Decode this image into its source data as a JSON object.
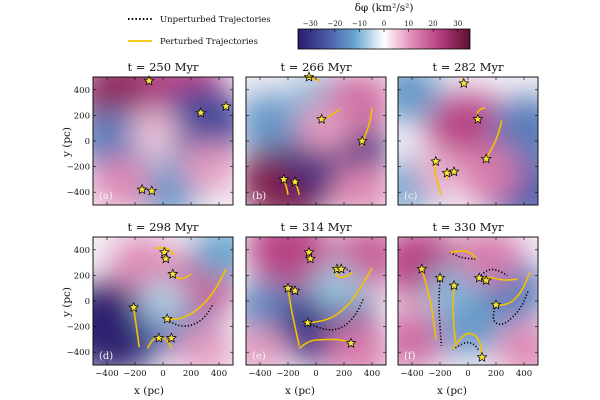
{
  "chart_data": {
    "type": "heatmap",
    "legend": {
      "placement": "top-left",
      "unperturbed": {
        "label": "Unperturbed Trajectories",
        "style": "black dotted line"
      },
      "perturbed": {
        "label": "Perturbed Trajectories",
        "style": "gold solid line"
      }
    },
    "colorbar": {
      "label": "δφ (km²/s²)",
      "range": [
        -35,
        35
      ],
      "ticks": [
        "−30",
        "−20",
        "−10",
        "0",
        "10",
        "20",
        "30"
      ],
      "colormap": [
        "#2a1b6b",
        "#4a58a8",
        "#6aa7cf",
        "#ffffff",
        "#e08ab6",
        "#b23a7d",
        "#5a0f2e"
      ]
    },
    "x_axis": {
      "label": "x (pc)",
      "range": [
        -500,
        500
      ],
      "tick_labels": [
        "−400",
        "−200",
        "0",
        "200",
        "400"
      ]
    },
    "y_axis": {
      "label": "y (pc)",
      "range": [
        -500,
        500
      ],
      "tick_labels": [
        "400",
        "200",
        "0",
        "−200",
        "−400"
      ]
    },
    "colors": {
      "star_fill": "#f5e23a",
      "perturbed_line": "#f2c200",
      "unperturbed_line": "#000000"
    },
    "panels": [
      {
        "title": "t = 250 Myr",
        "label": "(a)",
        "field": [
          {
            "x": -270,
            "y": 350,
            "value": 28
          },
          {
            "x": 150,
            "y": 400,
            "value": 22
          },
          {
            "x": -350,
            "y": 0,
            "value": -18
          },
          {
            "x": 280,
            "y": 120,
            "value": -26
          },
          {
            "x": 20,
            "y": -380,
            "value": -14
          },
          {
            "x": 330,
            "y": -200,
            "value": 10
          },
          {
            "x": -60,
            "y": 80,
            "value": 6
          },
          {
            "x": -300,
            "y": -330,
            "value": 12
          }
        ],
        "stars": [
          [
            -100,
            470
          ],
          [
            450,
            270
          ],
          [
            270,
            220
          ],
          [
            -150,
            -380
          ],
          [
            -80,
            -390
          ]
        ],
        "perturbed": [],
        "unperturbed": []
      },
      {
        "title": "t = 266 Myr",
        "label": "(b)",
        "field": [
          {
            "x": -200,
            "y": -300,
            "value": 30
          },
          {
            "x": 150,
            "y": -120,
            "value": -32
          },
          {
            "x": -330,
            "y": 150,
            "value": -14
          },
          {
            "x": 30,
            "y": 320,
            "value": -10
          },
          {
            "x": 300,
            "y": 300,
            "value": 16
          },
          {
            "x": 320,
            "y": -380,
            "value": 12
          },
          {
            "x": 60,
            "y": 100,
            "value": 10
          }
        ],
        "stars": [
          [
            -50,
            500
          ],
          [
            40,
            170
          ],
          [
            330,
            0
          ],
          [
            -230,
            -300
          ],
          [
            -150,
            -320
          ]
        ],
        "perturbed": [
          [
            [
              -80,
              500
            ],
            [
              -20,
              490
            ],
            [
              30,
              470
            ]
          ],
          [
            [
              320,
              -40
            ],
            [
              360,
              60
            ],
            [
              390,
              170
            ],
            [
              400,
              260
            ]
          ],
          [
            [
              60,
              170
            ],
            [
              120,
              210
            ],
            [
              170,
              250
            ]
          ],
          [
            [
              -230,
              -300
            ],
            [
              -210,
              -360
            ],
            [
              -200,
              -420
            ]
          ],
          [
            [
              -150,
              -320
            ],
            [
              -130,
              -370
            ],
            [
              -120,
              -420
            ]
          ]
        ],
        "unperturbed": []
      },
      {
        "title": "t = 282 Myr",
        "label": "(c)",
        "field": [
          {
            "x": 0,
            "y": 100,
            "value": 22
          },
          {
            "x": -430,
            "y": 380,
            "value": -14
          },
          {
            "x": 430,
            "y": 100,
            "value": -18
          },
          {
            "x": -420,
            "y": -350,
            "value": -12
          },
          {
            "x": 400,
            "y": -380,
            "value": -22
          },
          {
            "x": 150,
            "y": -250,
            "value": 14
          },
          {
            "x": -200,
            "y": -250,
            "value": 8
          }
        ],
        "stars": [
          [
            -30,
            450
          ],
          [
            70,
            170
          ],
          [
            130,
            -140
          ],
          [
            -230,
            -160
          ],
          [
            -150,
            -250
          ],
          [
            -100,
            -240
          ]
        ],
        "perturbed": [
          [
            [
              -30,
              450
            ],
            [
              -40,
              490
            ]
          ],
          [
            [
              70,
              170
            ],
            [
              60,
              220
            ],
            [
              90,
              250
            ],
            [
              120,
              260
            ]
          ],
          [
            [
              130,
              -140
            ],
            [
              180,
              -40
            ],
            [
              220,
              60
            ],
            [
              240,
              160
            ]
          ],
          [
            [
              -230,
              -160
            ],
            [
              -240,
              -240
            ],
            [
              -220,
              -320
            ],
            [
              -190,
              -420
            ]
          ],
          [
            [
              -150,
              -250
            ],
            [
              -150,
              -300
            ]
          ]
        ],
        "unperturbed": []
      },
      {
        "title": "t = 298 Myr",
        "label": "(d)",
        "field": [
          {
            "x": -350,
            "y": -200,
            "value": -34
          },
          {
            "x": 120,
            "y": -150,
            "value": -20
          },
          {
            "x": -150,
            "y": 300,
            "value": 12
          },
          {
            "x": 300,
            "y": 150,
            "value": 18
          },
          {
            "x": 430,
            "y": 380,
            "value": -12
          },
          {
            "x": 0,
            "y": 0,
            "value": -6
          },
          {
            "x": 300,
            "y": -380,
            "value": 10
          }
        ],
        "stars": [
          [
            -210,
            -50
          ],
          [
            10,
            380
          ],
          [
            20,
            330
          ],
          [
            70,
            210
          ],
          [
            30,
            -140
          ],
          [
            60,
            -290
          ],
          [
            -30,
            -290
          ]
        ],
        "perturbed": [
          [
            [
              -60,
              410
            ],
            [
              0,
              420
            ],
            [
              50,
              400
            ],
            [
              80,
              360
            ]
          ],
          [
            [
              70,
              210
            ],
            [
              100,
              170
            ],
            [
              160,
              180
            ],
            [
              200,
              210
            ]
          ],
          [
            [
              30,
              -140
            ],
            [
              120,
              -150
            ],
            [
              250,
              -70
            ],
            [
              360,
              60
            ],
            [
              450,
              250
            ]
          ],
          [
            [
              -210,
              -50
            ],
            [
              -190,
              -200
            ],
            [
              -170,
              -360
            ]
          ],
          [
            [
              -110,
              -370
            ],
            [
              -80,
              -300
            ],
            [
              -20,
              -270
            ],
            [
              40,
              -320
            ],
            [
              60,
              -370
            ]
          ]
        ],
        "unperturbed": [
          [
            [
              30,
              -140
            ],
            [
              80,
              -190
            ],
            [
              200,
              -200
            ],
            [
              300,
              -130
            ],
            [
              360,
              -20
            ]
          ]
        ]
      },
      {
        "title": "t = 314 Myr",
        "label": "(e)",
        "field": [
          {
            "x": -350,
            "y": -80,
            "value": -16
          },
          {
            "x": 80,
            "y": -180,
            "value": -30
          },
          {
            "x": -200,
            "y": 400,
            "value": 22
          },
          {
            "x": 380,
            "y": 350,
            "value": 18
          },
          {
            "x": 300,
            "y": -380,
            "value": 14
          },
          {
            "x": -420,
            "y": -380,
            "value": 10
          },
          {
            "x": 150,
            "y": 100,
            "value": -8
          }
        ],
        "stars": [
          [
            -50,
            380
          ],
          [
            -40,
            330
          ],
          [
            150,
            250
          ],
          [
            180,
            250
          ],
          [
            -200,
            100
          ],
          [
            -150,
            80
          ],
          [
            -60,
            -170
          ],
          [
            250,
            -330
          ]
        ],
        "perturbed": [
          [
            [
              -200,
              100
            ],
            [
              -180,
              -50
            ],
            [
              -150,
              -200
            ],
            [
              -120,
              -350
            ]
          ],
          [
            [
              -60,
              -170
            ],
            [
              80,
              -160
            ],
            [
              220,
              -50
            ],
            [
              320,
              100
            ],
            [
              400,
              260
            ]
          ],
          [
            [
              150,
              250
            ],
            [
              130,
              200
            ],
            [
              200,
              180
            ],
            [
              260,
              220
            ]
          ],
          [
            [
              -120,
              -370
            ],
            [
              -60,
              -310
            ],
            [
              60,
              -300
            ],
            [
              180,
              -300
            ],
            [
              250,
              -330
            ]
          ]
        ],
        "unperturbed": [
          [
            [
              -60,
              -170
            ],
            [
              50,
              -230
            ],
            [
              180,
              -220
            ],
            [
              280,
              -120
            ],
            [
              340,
              20
            ]
          ],
          [
            [
              150,
              250
            ],
            [
              200,
              260
            ],
            [
              250,
              230
            ]
          ]
        ]
      },
      {
        "title": "t = 330 Myr",
        "label": "(f)",
        "field": [
          {
            "x": 300,
            "y": 80,
            "value": -18
          },
          {
            "x": -350,
            "y": 300,
            "value": 22
          },
          {
            "x": -400,
            "y": -300,
            "value": 16
          },
          {
            "x": 0,
            "y": -200,
            "value": -14
          },
          {
            "x": 420,
            "y": -380,
            "value": 12
          },
          {
            "x": -100,
            "y": 100,
            "value": -10
          },
          {
            "x": 150,
            "y": 350,
            "value": 14
          }
        ],
        "stars": [
          [
            -330,
            250
          ],
          [
            -200,
            180
          ],
          [
            -100,
            120
          ],
          [
            80,
            180
          ],
          [
            130,
            160
          ],
          [
            200,
            -30
          ],
          [
            100,
            -440
          ]
        ],
        "perturbed": [
          [
            [
              -330,
              250
            ],
            [
              -290,
              100
            ],
            [
              -250,
              -100
            ],
            [
              -230,
              -300
            ]
          ],
          [
            [
              -100,
              120
            ],
            [
              -110,
              -50
            ],
            [
              -100,
              -200
            ],
            [
              -90,
              -330
            ]
          ],
          [
            [
              -130,
              380
            ],
            [
              -40,
              400
            ],
            [
              30,
              370
            ],
            [
              60,
              330
            ]
          ],
          [
            [
              -110,
              -380
            ],
            [
              -40,
              -260
            ],
            [
              40,
              -250
            ],
            [
              90,
              -320
            ],
            [
              100,
              -440
            ]
          ],
          [
            [
              80,
              180
            ],
            [
              150,
              190
            ],
            [
              250,
              160
            ],
            [
              350,
              170
            ]
          ],
          [
            [
              200,
              -30
            ],
            [
              280,
              -40
            ],
            [
              380,
              60
            ],
            [
              440,
              220
            ]
          ]
        ],
        "unperturbed": [
          [
            [
              -200,
              180
            ],
            [
              -210,
              0
            ],
            [
              -200,
              -200
            ],
            [
              -190,
              -350
            ]
          ],
          [
            [
              -130,
              380
            ],
            [
              -60,
              340
            ],
            [
              20,
              330
            ],
            [
              60,
              330
            ]
          ],
          [
            [
              80,
              180
            ],
            [
              120,
              240
            ],
            [
              200,
              250
            ],
            [
              280,
              200
            ]
          ],
          [
            [
              -110,
              -380
            ],
            [
              -30,
              -320
            ],
            [
              40,
              -330
            ],
            [
              80,
              -390
            ]
          ],
          [
            [
              200,
              -30
            ],
            [
              160,
              -150
            ],
            [
              250,
              -200
            ],
            [
              380,
              -60
            ],
            [
              430,
              80
            ]
          ]
        ]
      }
    ]
  }
}
